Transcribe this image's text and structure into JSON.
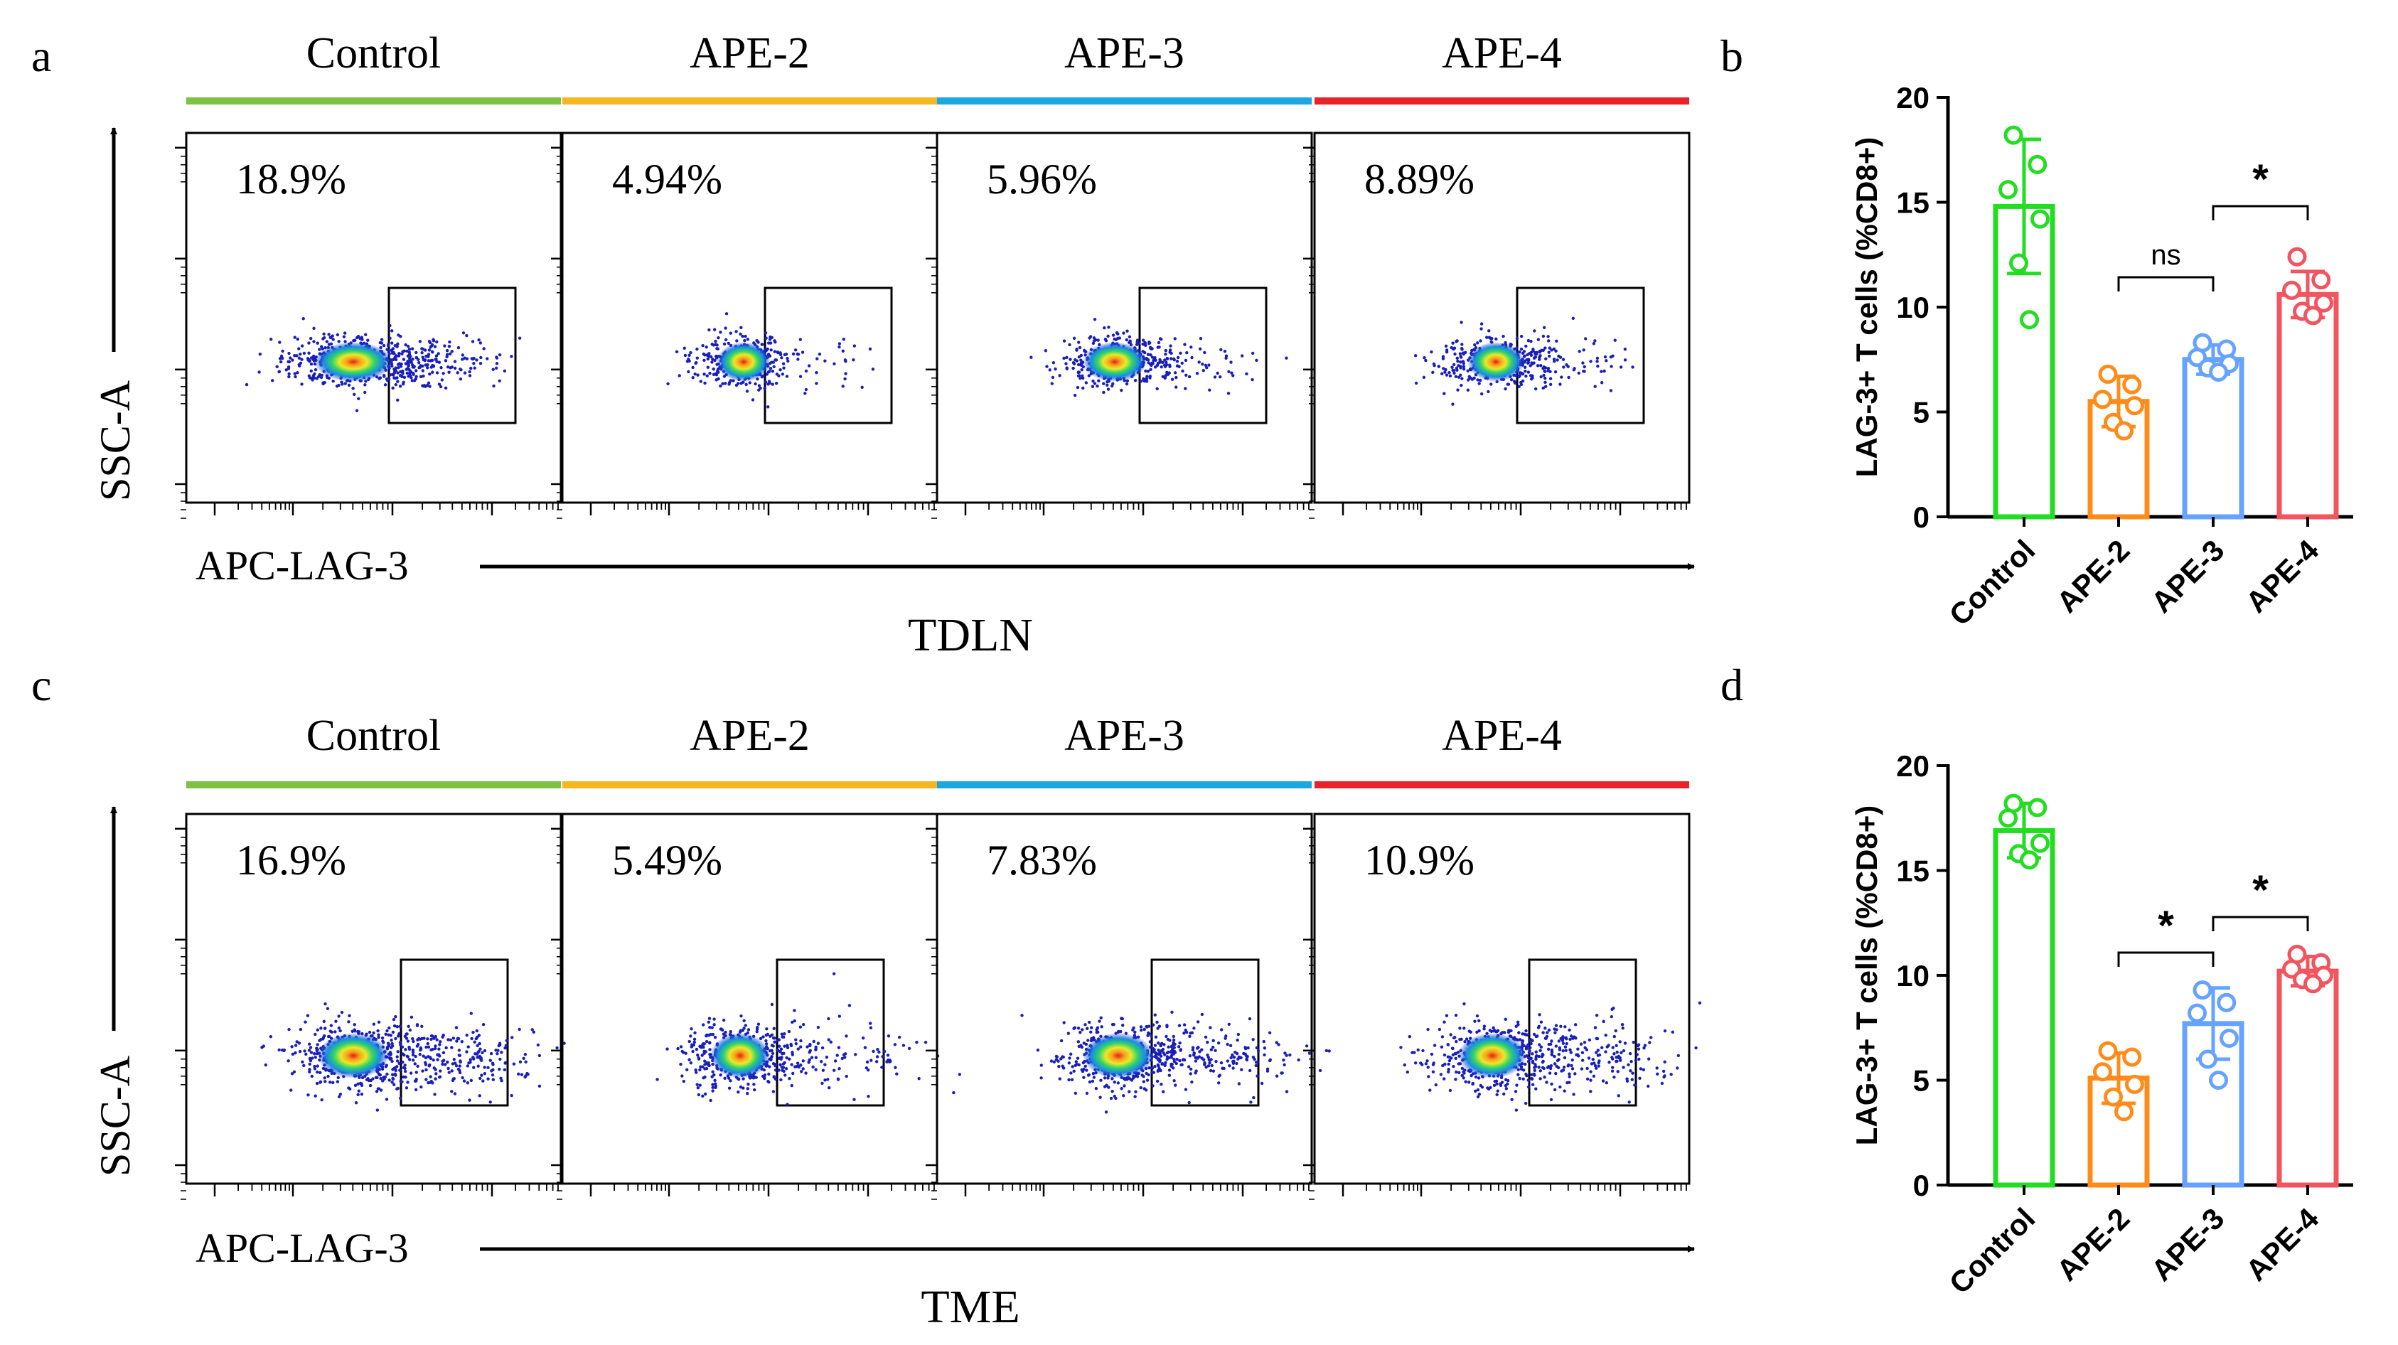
{
  "colors": {
    "control": "#7dc242",
    "ape2": "#f5b61f",
    "ape3": "#1ca7e0",
    "ape4": "#e8212b",
    "bar_control": "#22dd22",
    "bar_ape2": "#ff8c1a",
    "bar_ape3": "#66a3ff",
    "bar_ape4": "#f25560"
  },
  "panels": {
    "a": {
      "letter": "a",
      "tissue": "TDLN",
      "y_label": "SSC-A",
      "x_label": "APC-LAG-3",
      "groups": [
        "Control",
        "APE-2",
        "APE-3",
        "APE-4"
      ],
      "percentages": [
        "18.9%",
        "4.94%",
        "5.96%",
        "8.89%"
      ]
    },
    "c": {
      "letter": "c",
      "tissue": "TME",
      "y_label": "SSC-A",
      "x_label": "APC-LAG-3",
      "groups": [
        "Control",
        "APE-2",
        "APE-3",
        "APE-4"
      ],
      "percentages": [
        "16.9%",
        "5.49%",
        "7.83%",
        "10.9%"
      ]
    },
    "b": {
      "letter": "b"
    },
    "d": {
      "letter": "d"
    }
  },
  "chart_data": [
    {
      "id": "b",
      "type": "bar",
      "title": "",
      "xlabel": "",
      "ylabel": "LAG-3+ T cells (%CD8+)",
      "ylim": [
        0,
        20
      ],
      "yticks": [
        "0",
        "5",
        "10",
        "15",
        "20"
      ],
      "categories": [
        "Control",
        "APE-2",
        "APE-3",
        "APE-4"
      ],
      "values": [
        14.8,
        5.5,
        7.5,
        10.6
      ],
      "sd": [
        3.2,
        1.2,
        0.7,
        1.1
      ],
      "points": [
        [
          18.2,
          16.8,
          15.6,
          14.2,
          12.1,
          9.4
        ],
        [
          6.8,
          6.3,
          5.6,
          5.3,
          4.5,
          4.1
        ],
        [
          8.3,
          8.0,
          7.6,
          7.3,
          7.1,
          6.9
        ],
        [
          12.4,
          11.3,
          10.8,
          10.2,
          9.8,
          9.6
        ]
      ],
      "significance": [
        {
          "from": 1,
          "to": 2,
          "label": "ns"
        },
        {
          "from": 2,
          "to": 3,
          "label": "*"
        }
      ]
    },
    {
      "id": "d",
      "type": "bar",
      "title": "",
      "xlabel": "",
      "ylabel": "LAG-3+ T cells (%CD8+)",
      "ylim": [
        0,
        20
      ],
      "yticks": [
        "0",
        "5",
        "10",
        "15",
        "20"
      ],
      "categories": [
        "Control",
        "APE-2",
        "APE-3",
        "APE-4"
      ],
      "values": [
        16.9,
        5.1,
        7.7,
        10.2
      ],
      "sd": [
        1.3,
        1.2,
        1.7,
        0.7
      ],
      "points": [
        [
          18.2,
          18.0,
          17.5,
          16.3,
          15.8,
          15.5
        ],
        [
          6.4,
          6.1,
          5.4,
          4.8,
          4.2,
          3.5
        ],
        [
          9.3,
          8.7,
          8.2,
          7.0,
          6.0,
          5.0
        ],
        [
          11.0,
          10.6,
          10.3,
          10.0,
          9.8,
          9.6
        ]
      ],
      "significance": [
        {
          "from": 1,
          "to": 2,
          "label": "*"
        },
        {
          "from": 2,
          "to": 3,
          "label": "*"
        }
      ]
    }
  ]
}
